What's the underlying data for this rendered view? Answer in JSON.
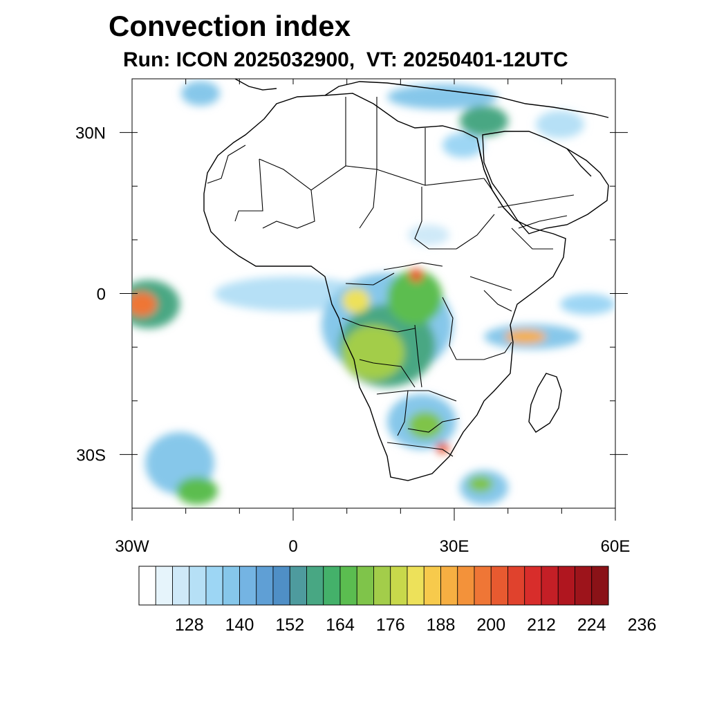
{
  "title": "Convection index",
  "subtitle": "Run: ICON 2025032900,  VT: 20250401-12UTC",
  "map": {
    "lon_range": [
      -30,
      60
    ],
    "lat_range": [
      -40,
      40
    ],
    "lat_ticks": [
      {
        "value": 30,
        "label": "30N"
      },
      {
        "value": 0,
        "label": "0"
      },
      {
        "value": -30,
        "label": "30S"
      }
    ],
    "lon_ticks": [
      {
        "value": -30,
        "label": "30W"
      },
      {
        "value": 0,
        "label": "0"
      },
      {
        "value": 30,
        "label": "30E"
      },
      {
        "value": 60,
        "label": "60E"
      }
    ],
    "land_outline_color": "#000000"
  },
  "colorbar": {
    "colors": [
      "#ffffff",
      "#e6f4fb",
      "#cfe9f8",
      "#b6e0f6",
      "#9dd6f4",
      "#86c7ea",
      "#74b4e3",
      "#5f9fd5",
      "#4f8fc6",
      "#4e9b9e",
      "#48a783",
      "#44b16a",
      "#5bbd50",
      "#7fc44a",
      "#a3cd4a",
      "#c8d84b",
      "#ede15a",
      "#f7ca4c",
      "#f7af42",
      "#f3923a",
      "#ef7636",
      "#e85a30",
      "#e0422d",
      "#d82d2b",
      "#c41f26",
      "#b0161f",
      "#9d141b",
      "#8a1217"
    ],
    "labels": [
      "128",
      "140",
      "152",
      "164",
      "176",
      "188",
      "200",
      "212",
      "224",
      "236"
    ]
  }
}
